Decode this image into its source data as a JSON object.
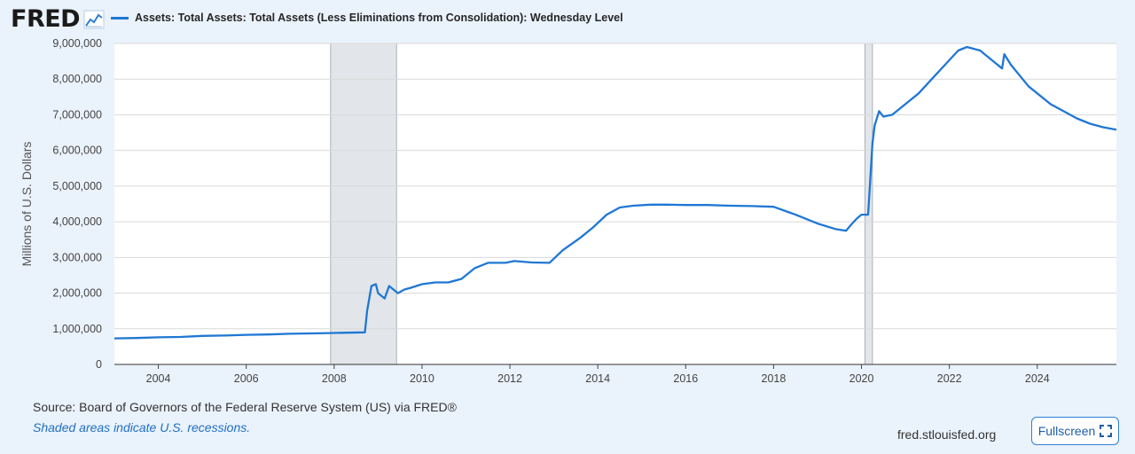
{
  "logo": {
    "text": "FRED"
  },
  "legend": {
    "label": "Assets: Total Assets: Total Assets (Less Eliminations from Consolidation): Wednesday Level"
  },
  "footer": {
    "source": "Source: Board of Governors of the Federal Reserve System (US) via FRED®",
    "recession_note": "Shaded areas indicate U.S. recessions.",
    "site": "fred.stlouisfed.org",
    "fullscreen_label": "Fullscreen"
  },
  "colors": {
    "line": "#1f77d4",
    "recession": "#e2e6ea",
    "background": "#eaf2fb",
    "plot": "#ffffff"
  },
  "icons": {
    "logo_graph": "line-graph-icon",
    "fullscreen": "expand-icon"
  },
  "chart_data": {
    "type": "line",
    "title": "",
    "xlabel": "",
    "ylabel": "Millions of U.S. Dollars",
    "xlim": [
      2003.0,
      2025.8
    ],
    "ylim": [
      0,
      9000000
    ],
    "x_ticks": [
      2004,
      2006,
      2008,
      2010,
      2012,
      2014,
      2016,
      2018,
      2020,
      2022,
      2024
    ],
    "y_ticks": [
      0,
      1000000,
      2000000,
      3000000,
      4000000,
      5000000,
      6000000,
      7000000,
      8000000,
      9000000
    ],
    "y_tick_labels": [
      "0",
      "1,000,000",
      "2,000,000",
      "3,000,000",
      "4,000,000",
      "5,000,000",
      "6,000,000",
      "7,000,000",
      "8,000,000",
      "9,000,000"
    ],
    "grid": true,
    "recessions": [
      [
        2007.92,
        2009.42
      ],
      [
        2020.08,
        2020.25
      ]
    ],
    "series": [
      {
        "name": "Assets: Total Assets: Total Assets (Less Eliminations from Consolidation): Wednesday Level",
        "x": [
          2003.0,
          2003.5,
          2004.0,
          2004.5,
          2005.0,
          2005.5,
          2006.0,
          2006.5,
          2007.0,
          2007.5,
          2007.9,
          2008.3,
          2008.7,
          2008.75,
          2008.85,
          2008.95,
          2009.0,
          2009.15,
          2009.25,
          2009.35,
          2009.45,
          2009.6,
          2009.75,
          2010.0,
          2010.3,
          2010.6,
          2010.9,
          2011.2,
          2011.5,
          2011.9,
          2012.1,
          2012.5,
          2012.9,
          2013.2,
          2013.6,
          2013.9,
          2014.2,
          2014.5,
          2014.8,
          2015.2,
          2015.6,
          2016.0,
          2016.5,
          2017.0,
          2017.5,
          2018.0,
          2018.5,
          2019.0,
          2019.4,
          2019.65,
          2019.75,
          2019.9,
          2020.0,
          2020.15,
          2020.2,
          2020.25,
          2020.3,
          2020.4,
          2020.5,
          2020.7,
          2021.0,
          2021.3,
          2021.6,
          2021.9,
          2022.2,
          2022.4,
          2022.7,
          2023.0,
          2023.2,
          2023.25,
          2023.4,
          2023.6,
          2023.8,
          2024.0,
          2024.3,
          2024.6,
          2024.9,
          2025.2,
          2025.5,
          2025.8
        ],
        "values": [
          730000,
          740000,
          760000,
          770000,
          800000,
          810000,
          830000,
          840000,
          860000,
          870000,
          880000,
          890000,
          900000,
          1500000,
          2200000,
          2250000,
          2000000,
          1850000,
          2200000,
          2100000,
          2000000,
          2100000,
          2150000,
          2250000,
          2300000,
          2300000,
          2400000,
          2700000,
          2850000,
          2850000,
          2900000,
          2860000,
          2850000,
          3200000,
          3550000,
          3850000,
          4200000,
          4400000,
          4450000,
          4480000,
          4480000,
          4470000,
          4470000,
          4450000,
          4440000,
          4420000,
          4200000,
          3950000,
          3800000,
          3750000,
          3900000,
          4100000,
          4200000,
          4200000,
          5200000,
          6200000,
          6700000,
          7100000,
          6950000,
          7000000,
          7300000,
          7600000,
          8000000,
          8400000,
          8800000,
          8900000,
          8800000,
          8500000,
          8300000,
          8700000,
          8400000,
          8100000,
          7800000,
          7600000,
          7300000,
          7100000,
          6900000,
          6750000,
          6650000,
          6580000
        ]
      }
    ]
  }
}
